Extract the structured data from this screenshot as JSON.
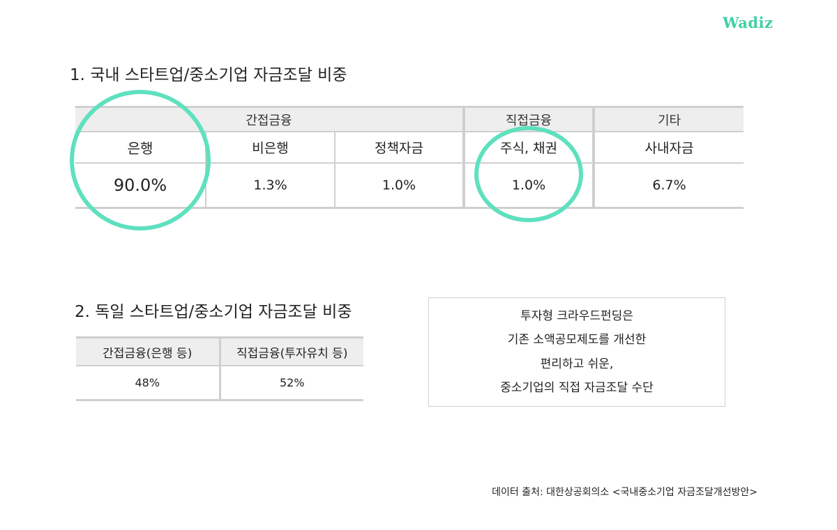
{
  "brand": {
    "logo_text": "Wadiz",
    "accent_color": "#5fe0bf"
  },
  "section1": {
    "title": "1. 국내 스타트업/중소기업 자금조달 비중",
    "groups": [
      "간접금융",
      "직접금융",
      "기타"
    ],
    "columns": [
      "은행",
      "비은행",
      "정책자금",
      "주식, 채권",
      "사내자금"
    ],
    "values": [
      "90.0%",
      "1.3%",
      "1.0%",
      "1.0%",
      "6.7%"
    ]
  },
  "section2": {
    "title": "2. 독일 스타트업/중소기업 자금조달 비중",
    "columns": [
      "간접금융(은행 등)",
      "직접금융(투자유치 등)"
    ],
    "values": [
      "48%",
      "52%"
    ]
  },
  "note": {
    "lines": [
      "투자형 크라우드펀딩은",
      "기존 소액공모제도를 개선한",
      "편리하고 쉬운,",
      "중소기업의 직접 자금조달 수단"
    ]
  },
  "source": "데이터 출처: 대한상공회의소 <국내중소기업 자금조달개선방안>"
}
